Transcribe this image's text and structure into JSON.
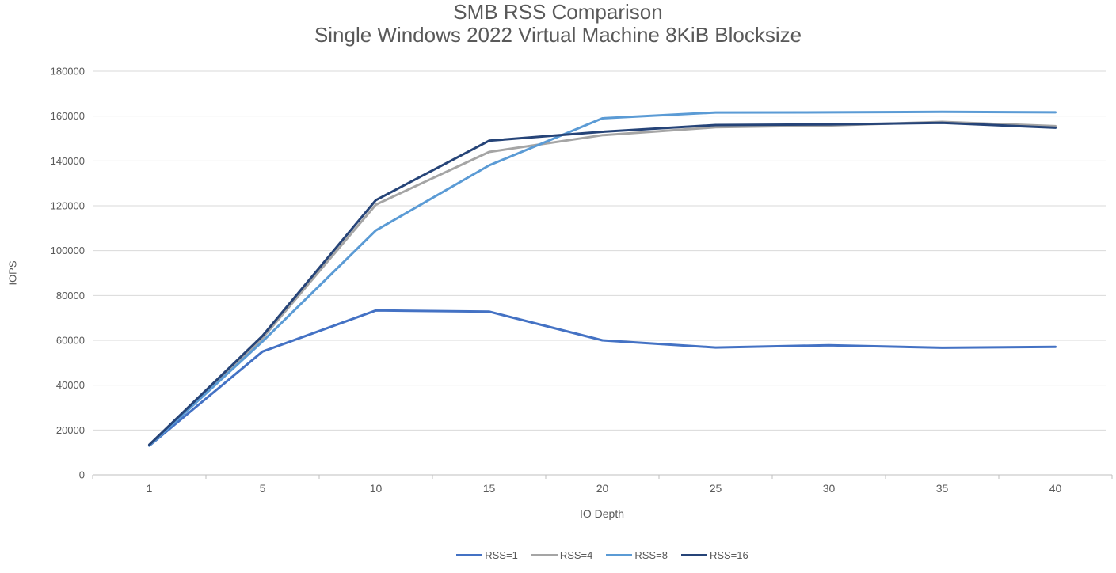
{
  "title": {
    "line1": "SMB RSS Comparison",
    "line2": "Single Windows 2022 Virtual Machine 8KiB Blocksize"
  },
  "chart_data": {
    "type": "line",
    "title": "SMB RSS Comparison",
    "subtitle": "Single Windows 2022 Virtual Machine 8KiB Blocksize",
    "xlabel": "IO Depth",
    "ylabel": "IOPS",
    "x": [
      1,
      5,
      10,
      15,
      20,
      25,
      30,
      35,
      40
    ],
    "xtick_labels": [
      "1",
      "5",
      "10",
      "15",
      "20",
      "25",
      "30",
      "35",
      "40"
    ],
    "ylim": [
      0,
      180000
    ],
    "ytick_step": 20000,
    "ytick_labels": [
      "0",
      "20000",
      "40000",
      "60000",
      "80000",
      "100000",
      "120000",
      "140000",
      "160000",
      "180000"
    ],
    "grid": true,
    "legend_position": "bottom",
    "series": [
      {
        "name": "RSS=1",
        "color": "#4472C4",
        "values": [
          13000,
          55000,
          73300,
          72800,
          60000,
          56800,
          57800,
          56700,
          57100
        ]
      },
      {
        "name": "RSS=4",
        "color": "#A5A5A5",
        "values": [
          13200,
          61000,
          120500,
          144000,
          151500,
          155000,
          155800,
          157400,
          155500
        ]
      },
      {
        "name": "RSS=8",
        "color": "#5B9BD5",
        "values": [
          13100,
          59500,
          109000,
          138000,
          159000,
          161600,
          161700,
          161900,
          161700
        ]
      },
      {
        "name": "RSS=16",
        "color": "#264478",
        "values": [
          13400,
          62000,
          122500,
          149000,
          153000,
          156000,
          156300,
          157000,
          154800
        ]
      }
    ]
  },
  "colors": {
    "text": "#595959",
    "gridline": "#D9D9D9",
    "axis_line": "#BFBFBF",
    "background": "#FFFFFF"
  }
}
